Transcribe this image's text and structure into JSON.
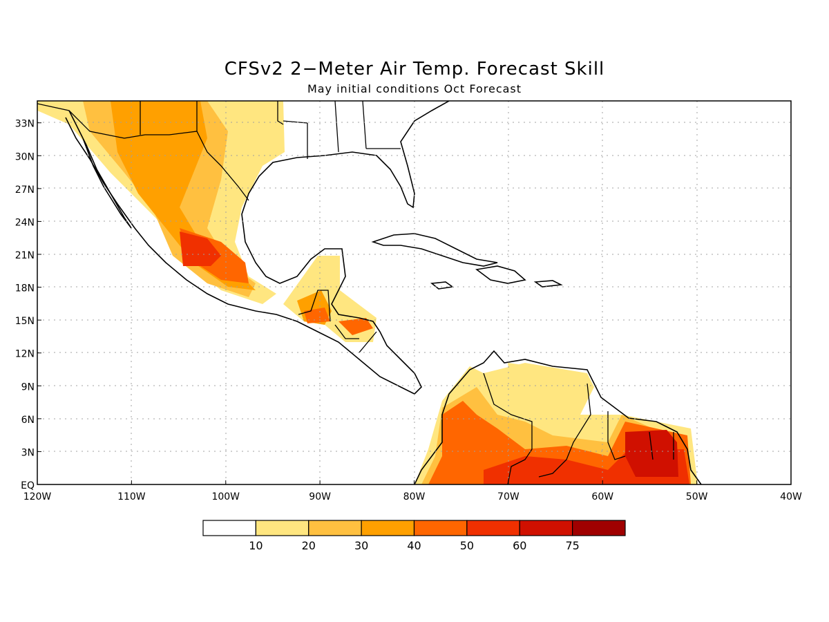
{
  "title": "CFSv2 2−Meter Air Temp. Forecast Skill",
  "subtitle": "May initial conditions  Oct Forecast",
  "lat_axis": {
    "ticks": [
      {
        "lat": 33,
        "label": "33N"
      },
      {
        "lat": 30,
        "label": "30N"
      },
      {
        "lat": 27,
        "label": "27N"
      },
      {
        "lat": 24,
        "label": "24N"
      },
      {
        "lat": 21,
        "label": "21N"
      },
      {
        "lat": 18,
        "label": "18N"
      },
      {
        "lat": 15,
        "label": "15N"
      },
      {
        "lat": 12,
        "label": "12N"
      },
      {
        "lat": 9,
        "label": "9N"
      },
      {
        "lat": 6,
        "label": "6N"
      },
      {
        "lat": 3,
        "label": "3N"
      },
      {
        "lat": 0,
        "label": "EQ"
      }
    ],
    "range": [
      0,
      35
    ]
  },
  "lon_axis": {
    "ticks": [
      {
        "lon": -120,
        "label": "120W"
      },
      {
        "lon": -110,
        "label": "110W"
      },
      {
        "lon": -100,
        "label": "100W"
      },
      {
        "lon": -90,
        "label": "90W"
      },
      {
        "lon": -80,
        "label": "80W"
      },
      {
        "lon": -70,
        "label": "70W"
      },
      {
        "lon": -60,
        "label": "60W"
      },
      {
        "lon": -50,
        "label": "50W"
      },
      {
        "lon": -40,
        "label": "40W"
      }
    ],
    "range": [
      -120,
      -40
    ]
  },
  "legend": {
    "labels": [
      "10",
      "20",
      "30",
      "40",
      "50",
      "60",
      "75"
    ],
    "colors": [
      "#ffffff",
      "#ffe680",
      "#ffc040",
      "#ffa000",
      "#ff6600",
      "#f03000",
      "#d01000",
      "#a00000"
    ]
  },
  "map": {
    "grid": true,
    "colors": {
      "c10": "#ffe680",
      "c20": "#ffc040",
      "c30": "#ffa000",
      "c40": "#ff6600",
      "c50": "#f03000",
      "c60": "#d01000"
    }
  }
}
